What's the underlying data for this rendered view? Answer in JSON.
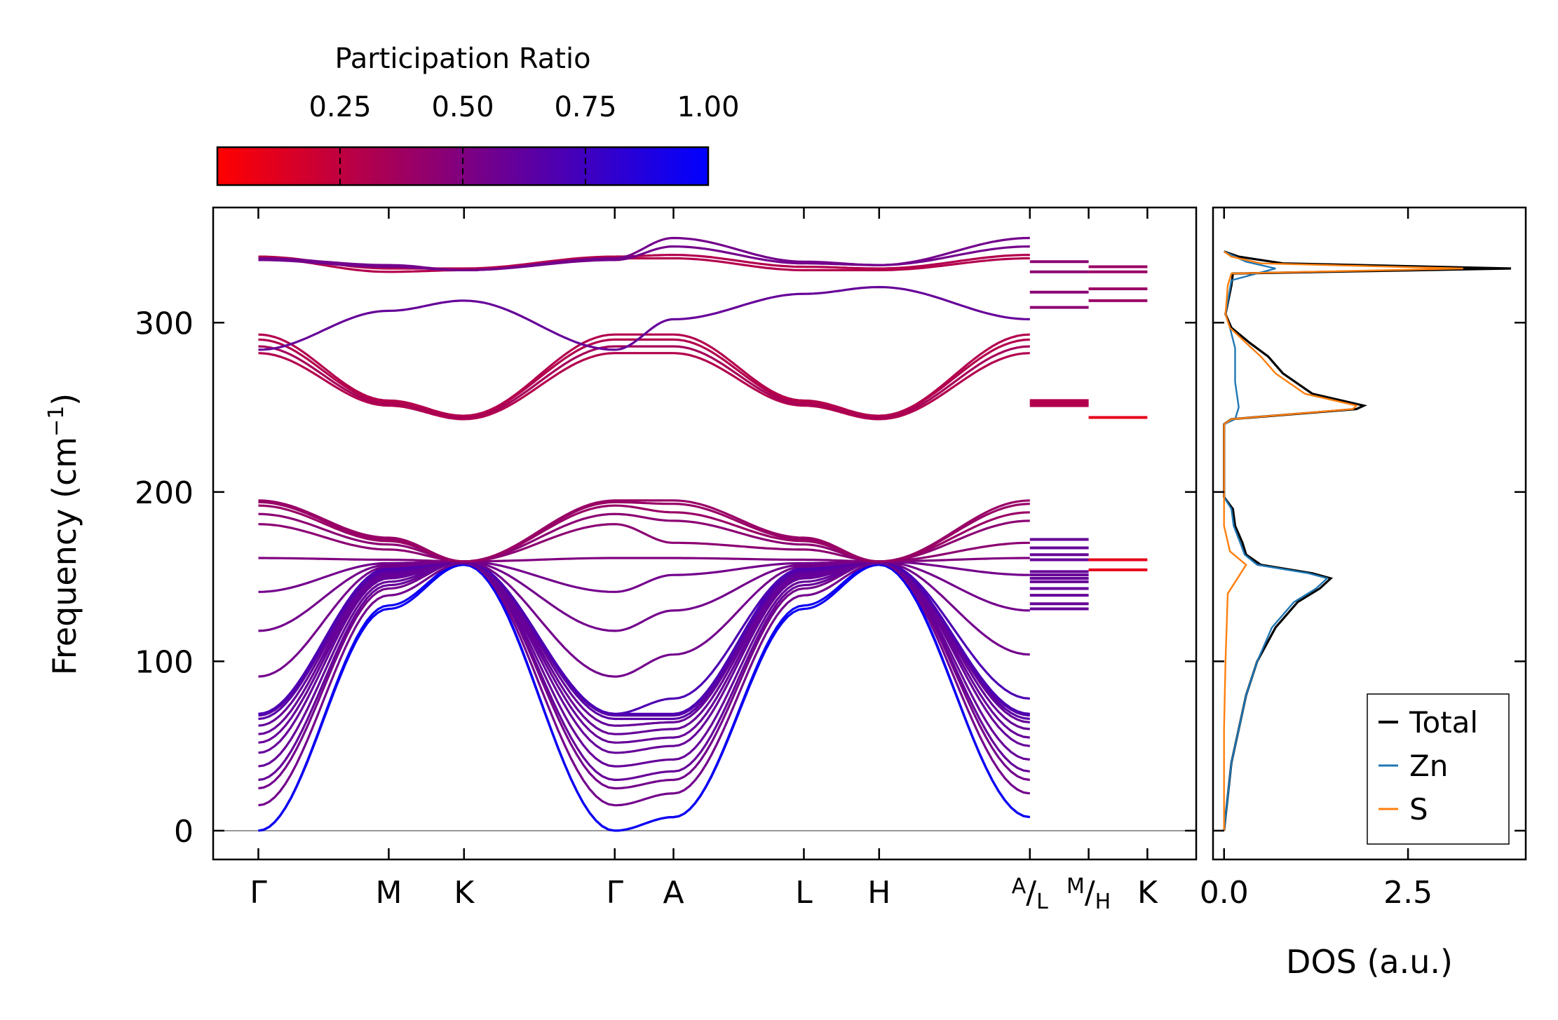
{
  "chart_data": [
    {
      "type": "line",
      "name": "phonon-band-structure",
      "ylabel": "Frequency (cm",
      "ylabel_sup": "−1",
      "ylabel_end": ")",
      "ylim": [
        -17,
        368
      ],
      "yticks": [
        0,
        100,
        200,
        300
      ],
      "ytick_labels": [
        "0",
        "100",
        "200",
        "300"
      ],
      "kpath": [
        {
          "label": "Γ",
          "pos": 0.0
        },
        {
          "label": "M",
          "pos": 0.577
        },
        {
          "label": "K",
          "pos": 0.91
        },
        {
          "label": "Γ",
          "pos": 1.577
        },
        {
          "label": "A",
          "pos": 1.837
        },
        {
          "label": "L",
          "pos": 2.414
        },
        {
          "label": "H",
          "pos": 2.747
        },
        {
          "label": "A/L",
          "pos": 3.414
        },
        {
          "label": "M/H",
          "pos": 3.674
        },
        {
          "label": "K",
          "pos": 3.934
        }
      ],
      "xlim": [
        -0.2,
        4.15
      ],
      "color_scale": {
        "low": "#ff0000",
        "high": "#0000ff",
        "label": "Participation Ratio"
      },
      "bands": [
        {
          "values": [
            0,
            131,
            157,
            0,
            8,
            131,
            157,
            8
          ],
          "pr": 0.95
        },
        {
          "values": [
            0,
            133,
            158,
            0,
            8,
            133,
            158,
            8
          ],
          "pr": 0.95
        },
        {
          "values": [
            15,
            139,
            158,
            15,
            22,
            139,
            158,
            22
          ],
          "pr": 0.55
        },
        {
          "values": [
            25,
            143,
            159,
            25,
            30,
            143,
            159,
            30
          ],
          "pr": 0.55
        },
        {
          "values": [
            30,
            145,
            159,
            30,
            35,
            145,
            159,
            35
          ],
          "pr": 0.6
        },
        {
          "values": [
            38,
            147,
            159,
            38,
            42,
            147,
            159,
            42
          ],
          "pr": 0.6
        },
        {
          "values": [
            46,
            149,
            159,
            46,
            50,
            149,
            159,
            50
          ],
          "pr": 0.6
        },
        {
          "values": [
            52,
            150,
            159,
            52,
            55,
            150,
            159,
            55
          ],
          "pr": 0.6
        },
        {
          "values": [
            57,
            151,
            159,
            57,
            60,
            151,
            159,
            60
          ],
          "pr": 0.6
        },
        {
          "values": [
            62,
            152,
            159,
            62,
            64,
            152,
            159,
            64
          ],
          "pr": 0.6
        },
        {
          "values": [
            66,
            153,
            159,
            66,
            66,
            153,
            159,
            66
          ],
          "pr": 0.65
        },
        {
          "values": [
            68,
            154,
            159,
            68,
            68,
            154,
            159,
            68
          ],
          "pr": 0.65
        },
        {
          "values": [
            69,
            155,
            159,
            69,
            69,
            155,
            159,
            69
          ],
          "pr": 0.7
        },
        {
          "values": [
            69,
            155,
            159,
            69,
            78,
            155,
            159,
            78
          ],
          "pr": 0.7
        },
        {
          "values": [
            91,
            156,
            159,
            91,
            104,
            156,
            159,
            104
          ],
          "pr": 0.55
        },
        {
          "values": [
            118,
            157,
            159,
            118,
            130,
            157,
            159,
            130
          ],
          "pr": 0.55
        },
        {
          "values": [
            141,
            158,
            159,
            141,
            151,
            158,
            159,
            151
          ],
          "pr": 0.55
        },
        {
          "values": [
            161,
            160,
            159,
            161,
            161,
            160,
            159,
            161
          ],
          "pr": 0.5
        },
        {
          "values": [
            181,
            166,
            159,
            181,
            170,
            166,
            159,
            170
          ],
          "pr": 0.45
        },
        {
          "values": [
            187,
            169,
            159,
            187,
            183,
            169,
            159,
            183
          ],
          "pr": 0.45
        },
        {
          "values": [
            192,
            171,
            159,
            192,
            188,
            171,
            159,
            188
          ],
          "pr": 0.4
        },
        {
          "values": [
            194,
            172,
            159,
            194,
            193,
            172,
            159,
            193
          ],
          "pr": 0.4
        },
        {
          "values": [
            195,
            173,
            159,
            195,
            195,
            173,
            159,
            195
          ],
          "pr": 0.4
        },
        {
          "values": [
            282,
            251,
            243,
            282,
            282,
            251,
            243,
            282
          ],
          "pr": 0.3
        },
        {
          "values": [
            286,
            252,
            244,
            286,
            286,
            252,
            244,
            286
          ],
          "pr": 0.35
        },
        {
          "values": [
            290,
            253,
            245,
            290,
            290,
            253,
            245,
            290
          ],
          "pr": 0.3
        },
        {
          "values": [
            293,
            254,
            245,
            293,
            293,
            254,
            245,
            293
          ],
          "pr": 0.3
        },
        {
          "values": [
            284,
            307,
            313,
            284,
            302,
            317,
            321,
            302
          ],
          "pr": 0.6
        },
        {
          "values": [
            338,
            330,
            331,
            338,
            338,
            331,
            331,
            338
          ],
          "pr": 0.3
        },
        {
          "values": [
            339,
            332,
            332,
            339,
            340,
            333,
            332,
            340
          ],
          "pr": 0.3
        },
        {
          "values": [
            337,
            333,
            331,
            337,
            345,
            335,
            334,
            345
          ],
          "pr": 0.55
        },
        {
          "values": [
            338,
            334,
            331,
            338,
            350,
            336,
            334,
            350
          ],
          "pr": 0.55
        }
      ],
      "side_segments": [
        {
          "values": [
            131,
            134,
            139,
            143,
            147,
            149,
            151,
            153,
            160,
            163,
            167,
            172
          ],
          "pr": 0.6,
          "span": "A-L"
        },
        {
          "values": [
            251,
            252,
            253,
            254
          ],
          "pr": 0.3,
          "span": "A-L"
        },
        {
          "values": [
            309,
            318,
            330,
            336
          ],
          "pr": 0.45,
          "span": "A-L"
        },
        {
          "values": [
            154,
            160
          ],
          "pr": 0.1,
          "span": "M-K"
        },
        {
          "values": [
            244
          ],
          "pr": 0.1,
          "span": "M-K"
        },
        {
          "values": [
            313,
            320,
            330,
            333
          ],
          "pr": 0.4,
          "span": "M-K"
        }
      ]
    },
    {
      "type": "line",
      "name": "density-of-states",
      "xlabel": "DOS (a.u.)",
      "xlim": [
        -0.15,
        4.1
      ],
      "xticks": [
        0.0,
        2.5
      ],
      "xtick_labels": [
        "0.0",
        "2.5"
      ],
      "series": [
        {
          "name": "Total",
          "color": "#000000",
          "points": [
            [
              0,
              0
            ],
            [
              0.05,
              20
            ],
            [
              0.1,
              40
            ],
            [
              0.2,
              60
            ],
            [
              0.3,
              80
            ],
            [
              0.45,
              100
            ],
            [
              0.7,
              120
            ],
            [
              1.0,
              135
            ],
            [
              1.3,
              143
            ],
            [
              1.45,
              149
            ],
            [
              1.2,
              152
            ],
            [
              0.5,
              157
            ],
            [
              0.3,
              163
            ],
            [
              0.25,
              170
            ],
            [
              0.15,
              180
            ],
            [
              0.12,
              190
            ],
            [
              0,
              197
            ],
            [
              0,
              240
            ],
            [
              0.1,
              243
            ],
            [
              1.8,
              249
            ],
            [
              1.9,
              251
            ],
            [
              1.2,
              258
            ],
            [
              0.8,
              270
            ],
            [
              0.6,
              280
            ],
            [
              0.35,
              288
            ],
            [
              0.1,
              297
            ],
            [
              0.02,
              305
            ],
            [
              0.1,
              322
            ],
            [
              0.12,
              329
            ],
            [
              3.9,
              332
            ],
            [
              0.8,
              335
            ],
            [
              0.2,
              339
            ],
            [
              0,
              342
            ]
          ]
        },
        {
          "name": "Zn",
          "color": "#1f77b4",
          "points": [
            [
              0,
              0
            ],
            [
              0.05,
              20
            ],
            [
              0.1,
              40
            ],
            [
              0.2,
              60
            ],
            [
              0.3,
              80
            ],
            [
              0.45,
              100
            ],
            [
              0.65,
              120
            ],
            [
              0.95,
              135
            ],
            [
              1.25,
              143
            ],
            [
              1.4,
              149
            ],
            [
              1.15,
              152
            ],
            [
              0.45,
              157
            ],
            [
              0.28,
              163
            ],
            [
              0.22,
              170
            ],
            [
              0.13,
              180
            ],
            [
              0.1,
              190
            ],
            [
              0,
              197
            ],
            [
              0,
              240
            ],
            [
              0.15,
              243
            ],
            [
              0.2,
              250
            ],
            [
              0.15,
              265
            ],
            [
              0.15,
              285
            ],
            [
              0.08,
              297
            ],
            [
              0.02,
              305
            ],
            [
              0.1,
              325
            ],
            [
              0.7,
              332
            ],
            [
              0.3,
              336
            ],
            [
              0.15,
              339
            ],
            [
              0,
              342
            ]
          ]
        },
        {
          "name": "S",
          "color": "#ff7f0e",
          "points": [
            [
              0,
              0
            ],
            [
              0,
              60
            ],
            [
              0.02,
              100
            ],
            [
              0.05,
              140
            ],
            [
              0.3,
              157
            ],
            [
              0.08,
              165
            ],
            [
              0,
              180
            ],
            [
              0,
              240
            ],
            [
              0.1,
              243
            ],
            [
              1.75,
              249
            ],
            [
              1.8,
              251
            ],
            [
              1.1,
              258
            ],
            [
              0.7,
              270
            ],
            [
              0.5,
              280
            ],
            [
              0.3,
              288
            ],
            [
              0.08,
              297
            ],
            [
              0.02,
              305
            ],
            [
              0.05,
              322
            ],
            [
              0.1,
              329
            ],
            [
              3.25,
              332
            ],
            [
              0.5,
              335
            ],
            [
              0.1,
              339
            ],
            [
              0,
              342
            ]
          ]
        }
      ],
      "legend": {
        "location": "lower-right",
        "entries": [
          "Total",
          "Zn",
          "S"
        ]
      }
    }
  ],
  "colorbar": {
    "label": "Participation Ratio",
    "tick_values": [
      0.25,
      0.5,
      0.75,
      1.0
    ],
    "tick_labels": [
      "0.25",
      "0.50",
      "0.75",
      "1.00"
    ],
    "range": [
      0.0,
      1.0
    ],
    "colors": [
      "#ff0000",
      "#0000ff"
    ]
  }
}
